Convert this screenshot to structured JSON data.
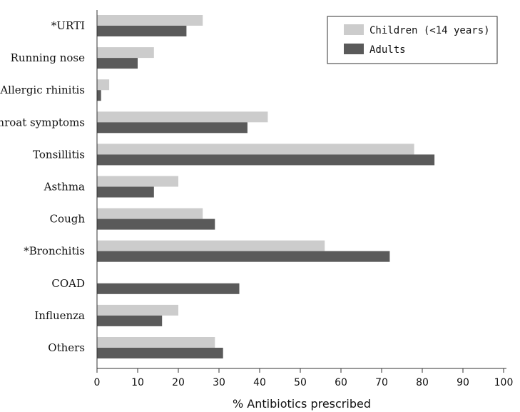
{
  "chart_data": {
    "type": "bar",
    "orientation": "horizontal",
    "categories": [
      "*URTI",
      "Running nose",
      "Allergic rhinitis",
      "Throat symptoms",
      "Tonsillitis",
      "Asthma",
      "Cough",
      "*Bronchitis",
      "COAD",
      "Influenza",
      "Others"
    ],
    "series": [
      {
        "name": "Children (<14 years)",
        "color": "#cccccc",
        "values": [
          26,
          14,
          3,
          42,
          78,
          20,
          26,
          56,
          0,
          20,
          29
        ]
      },
      {
        "name": "Adults",
        "color": "#5a5a5a",
        "values": [
          22,
          10,
          1,
          37,
          83,
          14,
          29,
          72,
          35,
          16,
          31
        ]
      }
    ],
    "xlabel": "% Antibiotics prescribed",
    "ylabel": "",
    "title": "",
    "xlim": [
      0,
      100
    ],
    "xticks": [
      "0",
      "10",
      "20",
      "30",
      "40",
      "50",
      "60",
      "70",
      "80",
      "90",
      "100"
    ],
    "grid": false,
    "legend_position": "top-right"
  }
}
